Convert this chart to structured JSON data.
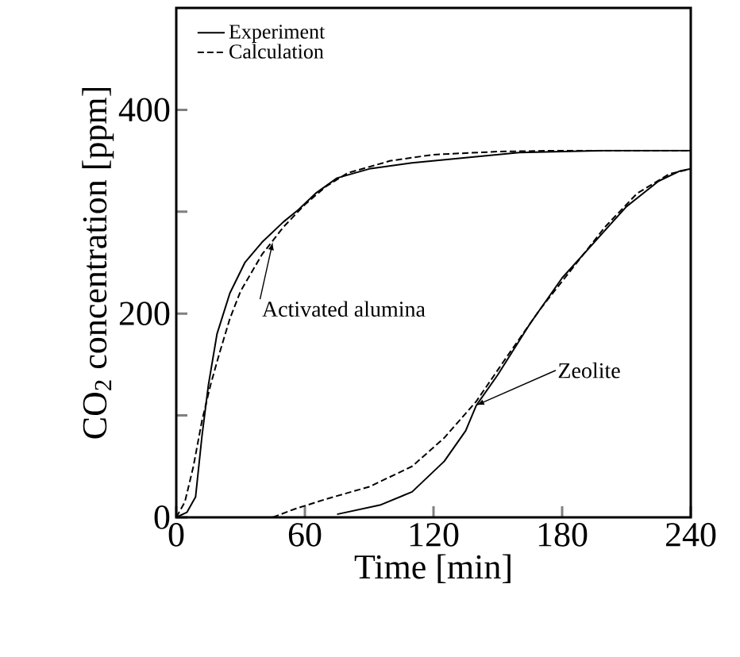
{
  "chart_data": {
    "type": "line",
    "xlabel": "Time [min]",
    "ylabel": "CO$_{2}$ concentration [ppm]",
    "xlim": [
      0,
      240
    ],
    "ylim": [
      0,
      500
    ],
    "xticks": [
      0,
      60,
      120,
      180,
      240
    ],
    "yticks": [
      0,
      {
        "value": 100,
        "label": null
      },
      200,
      {
        "value": 300,
        "label": null
      },
      400
    ],
    "legend": "top left",
    "grid": false,
    "marker": "none",
    "series": [
      {
        "name": "Experiment",
        "color": "#000000",
        "line_style": "solid",
        "x": [
          0,
          5,
          9,
          12,
          15,
          19,
          25,
          32,
          40,
          50,
          57,
          65,
          75,
          90,
          110,
          135,
          160,
          200,
          240
        ],
        "values": [
          0,
          5,
          20,
          80,
          130,
          180,
          220,
          250,
          270,
          290,
          302,
          318,
          333,
          342,
          348,
          353,
          358,
          360,
          360
        ]
      },
      {
        "name": "Calculation",
        "color": "#000000",
        "line_style": "dashed",
        "x": [
          0,
          4,
          8,
          12,
          16,
          20,
          25,
          30,
          40,
          50,
          60,
          70,
          80,
          100,
          120,
          150,
          180,
          240
        ],
        "values": [
          0,
          15,
          50,
          95,
          130,
          160,
          195,
          222,
          258,
          285,
          307,
          325,
          338,
          350,
          356,
          359,
          360,
          360
        ]
      },
      {
        "color": "#000000",
        "line_style": "solid",
        "x": [
          75,
          95,
          110,
          125,
          135,
          140,
          150,
          165,
          180,
          195,
          210,
          225,
          235,
          240
        ],
        "values": [
          3,
          12,
          25,
          55,
          85,
          110,
          140,
          190,
          235,
          270,
          305,
          330,
          340,
          342
        ]
      },
      {
        "color": "#000000",
        "line_style": "dashed",
        "x": [
          45,
          55,
          70,
          90,
          110,
          125,
          140,
          155,
          170,
          185,
          200,
          215,
          230,
          240
        ],
        "values": [
          0,
          8,
          18,
          30,
          50,
          78,
          114,
          160,
          205,
          245,
          285,
          318,
          337,
          342
        ]
      }
    ],
    "annotations": [
      {
        "text": "Activated alumina",
        "x": 45,
        "y": 270
      },
      {
        "text": "Zeolite",
        "x": 140,
        "y": 110
      }
    ]
  }
}
